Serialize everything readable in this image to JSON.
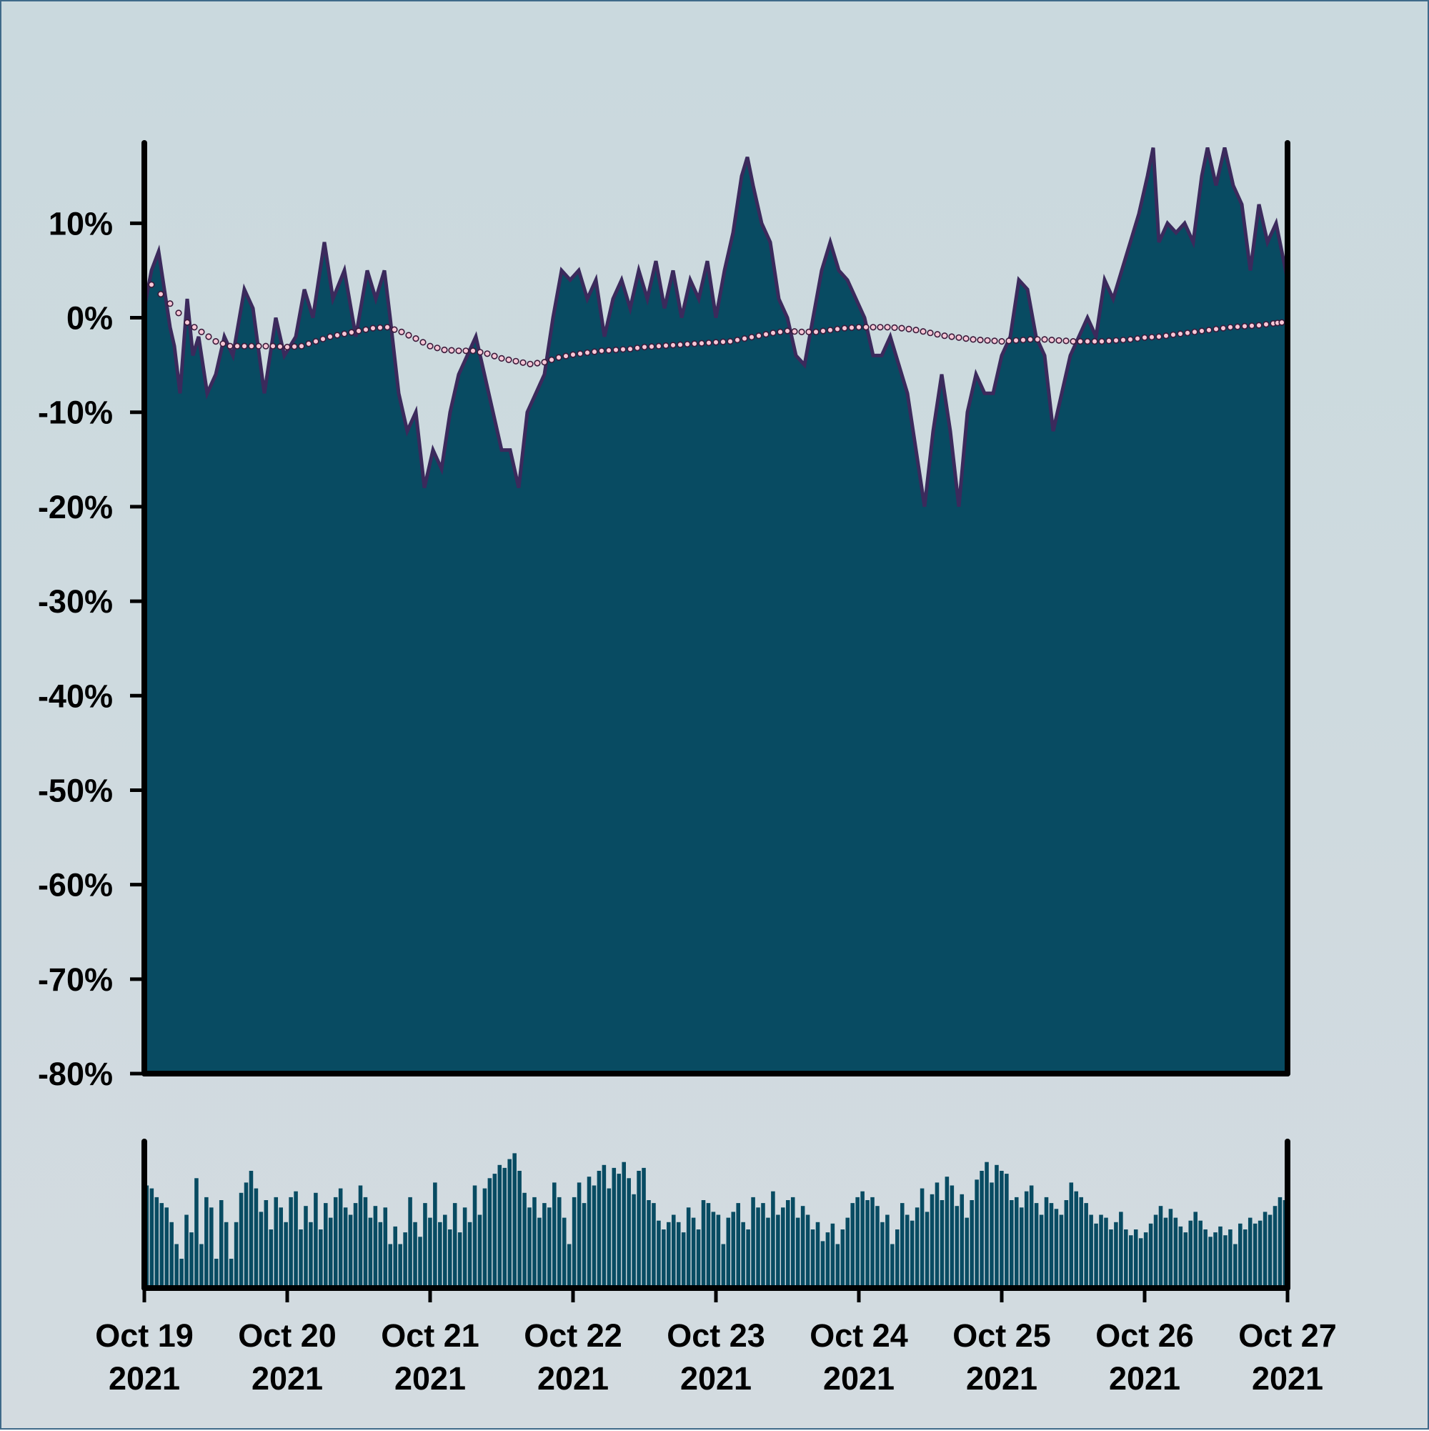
{
  "colors": {
    "background": "#cfdbe0",
    "area_fill": "#084b62",
    "area_line": "#3b2a5c",
    "ma_marker_fill": "#f7c7d6",
    "ma_marker_stroke": "#3b1a3a",
    "volume_fill": "#084b62",
    "axis": "#000000"
  },
  "chart_data": {
    "type": "area",
    "ylim": [
      -80,
      18.5
    ],
    "y_ticks": [
      {
        "value": 10,
        "label": "10%"
      },
      {
        "value": 0,
        "label": "0%"
      },
      {
        "value": -10,
        "label": "-10%"
      },
      {
        "value": -20,
        "label": "-20%"
      },
      {
        "value": -30,
        "label": "-30%"
      },
      {
        "value": -40,
        "label": "-40%"
      },
      {
        "value": -50,
        "label": "-50%"
      },
      {
        "value": -60,
        "label": "-60%"
      },
      {
        "value": -70,
        "label": "-70%"
      },
      {
        "value": -80,
        "label": "-80%"
      }
    ],
    "x_ticks": [
      {
        "line1": "Oct 19",
        "line2": "2021"
      },
      {
        "line1": "Oct 20",
        "line2": "2021"
      },
      {
        "line1": "Oct 21",
        "line2": "2021"
      },
      {
        "line1": "Oct 22",
        "line2": "2021"
      },
      {
        "line1": "Oct 23",
        "line2": "2021"
      },
      {
        "line1": "Oct 24",
        "line2": "2021"
      },
      {
        "line1": "Oct 25",
        "line2": "2021"
      },
      {
        "line1": "Oct 26",
        "line2": "2021"
      },
      {
        "line1": "Oct 27",
        "line2": "2021"
      }
    ],
    "xlim_days": [
      0,
      8
    ],
    "series": [
      {
        "kind": "area",
        "points": [
          [
            0.0,
            1
          ],
          [
            0.05,
            5
          ],
          [
            0.1,
            7
          ],
          [
            0.14,
            3
          ],
          [
            0.18,
            -1
          ],
          [
            0.21,
            -3
          ],
          [
            0.25,
            -8
          ],
          [
            0.3,
            2
          ],
          [
            0.34,
            -4
          ],
          [
            0.38,
            -2
          ],
          [
            0.44,
            -8
          ],
          [
            0.5,
            -6
          ],
          [
            0.56,
            -2
          ],
          [
            0.62,
            -4
          ],
          [
            0.7,
            3
          ],
          [
            0.76,
            1
          ],
          [
            0.84,
            -8
          ],
          [
            0.92,
            0
          ],
          [
            0.98,
            -4
          ],
          [
            1.06,
            -2
          ],
          [
            1.12,
            3
          ],
          [
            1.18,
            0
          ],
          [
            1.26,
            8
          ],
          [
            1.32,
            2
          ],
          [
            1.4,
            5
          ],
          [
            1.48,
            -2
          ],
          [
            1.56,
            5
          ],
          [
            1.62,
            2
          ],
          [
            1.68,
            5
          ],
          [
            1.72,
            0
          ],
          [
            1.78,
            -8
          ],
          [
            1.84,
            -12
          ],
          [
            1.9,
            -10
          ],
          [
            1.96,
            -18
          ],
          [
            2.02,
            -14
          ],
          [
            2.08,
            -16
          ],
          [
            2.14,
            -10
          ],
          [
            2.2,
            -6
          ],
          [
            2.26,
            -4
          ],
          [
            2.32,
            -2
          ],
          [
            2.38,
            -6
          ],
          [
            2.44,
            -10
          ],
          [
            2.5,
            -14
          ],
          [
            2.56,
            -14
          ],
          [
            2.62,
            -18
          ],
          [
            2.68,
            -10
          ],
          [
            2.74,
            -8
          ],
          [
            2.8,
            -6
          ],
          [
            2.86,
            0
          ],
          [
            2.92,
            5
          ],
          [
            2.98,
            4
          ],
          [
            3.04,
            5
          ],
          [
            3.1,
            2
          ],
          [
            3.16,
            4
          ],
          [
            3.22,
            -2
          ],
          [
            3.28,
            2
          ],
          [
            3.34,
            4
          ],
          [
            3.4,
            1
          ],
          [
            3.46,
            5
          ],
          [
            3.52,
            2
          ],
          [
            3.58,
            6
          ],
          [
            3.64,
            1
          ],
          [
            3.7,
            5
          ],
          [
            3.76,
            0
          ],
          [
            3.82,
            4
          ],
          [
            3.88,
            2
          ],
          [
            3.94,
            6
          ],
          [
            4.0,
            0
          ],
          [
            4.06,
            5
          ],
          [
            4.12,
            9
          ],
          [
            4.18,
            15
          ],
          [
            4.22,
            17
          ],
          [
            4.26,
            14
          ],
          [
            4.32,
            10
          ],
          [
            4.38,
            8
          ],
          [
            4.44,
            2
          ],
          [
            4.5,
            0
          ],
          [
            4.56,
            -4
          ],
          [
            4.62,
            -5
          ],
          [
            4.68,
            0
          ],
          [
            4.74,
            5
          ],
          [
            4.8,
            8
          ],
          [
            4.86,
            5
          ],
          [
            4.92,
            4
          ],
          [
            4.98,
            2
          ],
          [
            5.04,
            0
          ],
          [
            5.1,
            -4
          ],
          [
            5.16,
            -4
          ],
          [
            5.22,
            -2
          ],
          [
            5.28,
            -5
          ],
          [
            5.34,
            -8
          ],
          [
            5.4,
            -14
          ],
          [
            5.46,
            -20
          ],
          [
            5.52,
            -12
          ],
          [
            5.58,
            -6
          ],
          [
            5.64,
            -12
          ],
          [
            5.7,
            -20
          ],
          [
            5.76,
            -10
          ],
          [
            5.82,
            -6
          ],
          [
            5.88,
            -8
          ],
          [
            5.94,
            -8
          ],
          [
            6.0,
            -4
          ],
          [
            6.06,
            -2
          ],
          [
            6.12,
            4
          ],
          [
            6.18,
            3
          ],
          [
            6.24,
            -2
          ],
          [
            6.3,
            -4
          ],
          [
            6.36,
            -12
          ],
          [
            6.42,
            -8
          ],
          [
            6.48,
            -4
          ],
          [
            6.54,
            -2
          ],
          [
            6.6,
            0
          ],
          [
            6.66,
            -2
          ],
          [
            6.72,
            4
          ],
          [
            6.78,
            2
          ],
          [
            6.84,
            5
          ],
          [
            6.9,
            8
          ],
          [
            6.96,
            11
          ],
          [
            7.02,
            15
          ],
          [
            7.06,
            18
          ],
          [
            7.1,
            8
          ],
          [
            7.16,
            10
          ],
          [
            7.22,
            9
          ],
          [
            7.28,
            10
          ],
          [
            7.34,
            8
          ],
          [
            7.4,
            15
          ],
          [
            7.44,
            18
          ],
          [
            7.5,
            14
          ],
          [
            7.56,
            18
          ],
          [
            7.62,
            14
          ],
          [
            7.68,
            12
          ],
          [
            7.74,
            5
          ],
          [
            7.8,
            12
          ],
          [
            7.86,
            8
          ],
          [
            7.92,
            10
          ],
          [
            7.96,
            7
          ],
          [
            8.0,
            4
          ]
        ]
      },
      {
        "kind": "moving-average",
        "points": [
          [
            0.05,
            3.5
          ],
          [
            0.18,
            1.5
          ],
          [
            0.3,
            -0.5
          ],
          [
            0.4,
            -1.5
          ],
          [
            0.5,
            -2.5
          ],
          [
            0.6,
            -3
          ],
          [
            0.7,
            -3
          ],
          [
            0.8,
            -3
          ],
          [
            0.9,
            -3
          ],
          [
            1.0,
            -3.1
          ],
          [
            1.1,
            -3
          ],
          [
            1.2,
            -2.5
          ],
          [
            1.3,
            -2
          ],
          [
            1.4,
            -1.7
          ],
          [
            1.5,
            -1.4
          ],
          [
            1.6,
            -1.1
          ],
          [
            1.7,
            -1
          ],
          [
            1.8,
            -1.5
          ],
          [
            1.9,
            -2.2
          ],
          [
            2.0,
            -3
          ],
          [
            2.1,
            -3.4
          ],
          [
            2.2,
            -3.5
          ],
          [
            2.3,
            -3.5
          ],
          [
            2.4,
            -3.8
          ],
          [
            2.5,
            -4.3
          ],
          [
            2.6,
            -4.6
          ],
          [
            2.7,
            -4.9
          ],
          [
            2.8,
            -4.7
          ],
          [
            2.9,
            -4.2
          ],
          [
            3.0,
            -3.9
          ],
          [
            3.1,
            -3.7
          ],
          [
            3.2,
            -3.5
          ],
          [
            3.3,
            -3.4
          ],
          [
            3.4,
            -3.3
          ],
          [
            3.5,
            -3.1
          ],
          [
            3.6,
            -3
          ],
          [
            3.7,
            -2.9
          ],
          [
            3.8,
            -2.8
          ],
          [
            3.9,
            -2.7
          ],
          [
            4.0,
            -2.6
          ],
          [
            4.1,
            -2.5
          ],
          [
            4.2,
            -2.2
          ],
          [
            4.3,
            -1.9
          ],
          [
            4.4,
            -1.6
          ],
          [
            4.5,
            -1.4
          ],
          [
            4.6,
            -1.5
          ],
          [
            4.7,
            -1.5
          ],
          [
            4.8,
            -1.3
          ],
          [
            4.9,
            -1.1
          ],
          [
            5.0,
            -1.0
          ],
          [
            5.1,
            -1.0
          ],
          [
            5.2,
            -1.0
          ],
          [
            5.3,
            -1.1
          ],
          [
            5.4,
            -1.3
          ],
          [
            5.5,
            -1.6
          ],
          [
            5.6,
            -1.9
          ],
          [
            5.7,
            -2.1
          ],
          [
            5.8,
            -2.3
          ],
          [
            5.9,
            -2.4
          ],
          [
            6.0,
            -2.5
          ],
          [
            6.1,
            -2.4
          ],
          [
            6.2,
            -2.3
          ],
          [
            6.3,
            -2.3
          ],
          [
            6.4,
            -2.4
          ],
          [
            6.5,
            -2.5
          ],
          [
            6.6,
            -2.5
          ],
          [
            6.7,
            -2.5
          ],
          [
            6.8,
            -2.4
          ],
          [
            6.9,
            -2.3
          ],
          [
            7.0,
            -2.1
          ],
          [
            7.1,
            -2.0
          ],
          [
            7.2,
            -1.8
          ],
          [
            7.3,
            -1.6
          ],
          [
            7.4,
            -1.4
          ],
          [
            7.5,
            -1.2
          ],
          [
            7.6,
            -1.0
          ],
          [
            7.7,
            -0.9
          ],
          [
            7.8,
            -0.8
          ],
          [
            7.9,
            -0.6
          ],
          [
            7.96,
            -0.5
          ]
        ]
      }
    ],
    "volume": {
      "kind": "bar",
      "relative_scale": [
        0,
        1
      ],
      "values": [
        0.7,
        0.68,
        0.62,
        0.58,
        0.55,
        0.45,
        0.3,
        0.2,
        0.5,
        0.38,
        0.75,
        0.3,
        0.62,
        0.55,
        0.2,
        0.6,
        0.45,
        0.2,
        0.45,
        0.65,
        0.72,
        0.8,
        0.68,
        0.52,
        0.6,
        0.4,
        0.62,
        0.55,
        0.45,
        0.62,
        0.66,
        0.4,
        0.56,
        0.45,
        0.65,
        0.4,
        0.58,
        0.48,
        0.62,
        0.68,
        0.55,
        0.5,
        0.58,
        0.7,
        0.62,
        0.48,
        0.56,
        0.45,
        0.55,
        0.3,
        0.42,
        0.3,
        0.38,
        0.62,
        0.45,
        0.35,
        0.58,
        0.48,
        0.72,
        0.45,
        0.5,
        0.4,
        0.58,
        0.38,
        0.55,
        0.45,
        0.7,
        0.5,
        0.68,
        0.75,
        0.78,
        0.84,
        0.82,
        0.88,
        0.92,
        0.8,
        0.65,
        0.55,
        0.62,
        0.48,
        0.58,
        0.55,
        0.72,
        0.62,
        0.48,
        0.3,
        0.62,
        0.72,
        0.58,
        0.76,
        0.7,
        0.8,
        0.84,
        0.68,
        0.82,
        0.78,
        0.86,
        0.75,
        0.64,
        0.8,
        0.82,
        0.6,
        0.58,
        0.46,
        0.4,
        0.45,
        0.5,
        0.45,
        0.38,
        0.55,
        0.48,
        0.4,
        0.6,
        0.58,
        0.52,
        0.5,
        0.3,
        0.48,
        0.52,
        0.58,
        0.45,
        0.4,
        0.62,
        0.55,
        0.58,
        0.48,
        0.66,
        0.5,
        0.55,
        0.6,
        0.62,
        0.48,
        0.56,
        0.5,
        0.4,
        0.45,
        0.32,
        0.38,
        0.44,
        0.3,
        0.4,
        0.48,
        0.58,
        0.62,
        0.66,
        0.6,
        0.62,
        0.56,
        0.45,
        0.5,
        0.3,
        0.4,
        0.58,
        0.5,
        0.46,
        0.55,
        0.68,
        0.52,
        0.64,
        0.72,
        0.6,
        0.76,
        0.7,
        0.56,
        0.64,
        0.48,
        0.6,
        0.74,
        0.8,
        0.86,
        0.72,
        0.84,
        0.8,
        0.78,
        0.6,
        0.62,
        0.55,
        0.66,
        0.7,
        0.58,
        0.5,
        0.62,
        0.58,
        0.54,
        0.5,
        0.6,
        0.72,
        0.66,
        0.62,
        0.58,
        0.5,
        0.44,
        0.5,
        0.48,
        0.4,
        0.45,
        0.52,
        0.4,
        0.36,
        0.4,
        0.34,
        0.38,
        0.44,
        0.5,
        0.56,
        0.48,
        0.54,
        0.48,
        0.42,
        0.38,
        0.46,
        0.52,
        0.46,
        0.4,
        0.35,
        0.38,
        0.42,
        0.36,
        0.4,
        0.3,
        0.44,
        0.4,
        0.48,
        0.44,
        0.46,
        0.52,
        0.5,
        0.56,
        0.62,
        0.6
      ]
    }
  }
}
